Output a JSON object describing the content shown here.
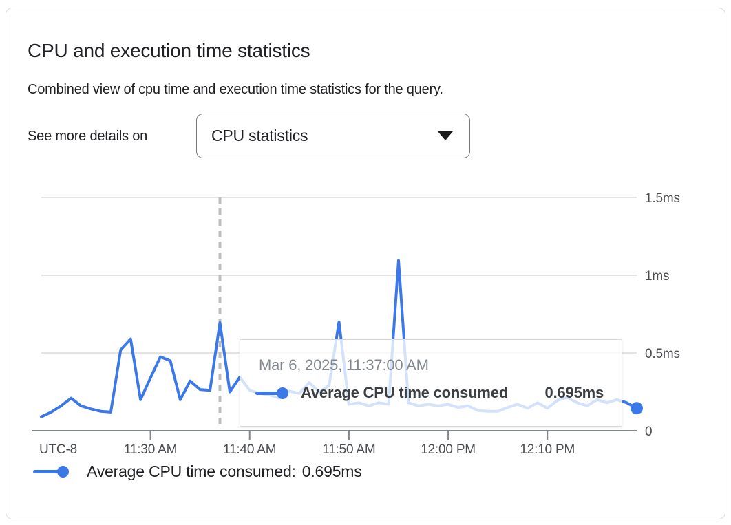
{
  "header": {
    "title": "CPU and execution time statistics",
    "subtitle": "Combined view of cpu time and execution time statistics for the query.",
    "selector_label": "See more details on",
    "selector_value": "CPU statistics"
  },
  "colors": {
    "series_blue": "#3b78e8",
    "axis_gray": "#80868b",
    "gridline_gray": "#e3e3e3",
    "dashed_marker_gray": "#bdbdbd"
  },
  "chart_data": {
    "type": "line",
    "title": "",
    "xlabel": "",
    "ylabel": "",
    "y_unit": "ms",
    "ylim": [
      0,
      1.5
    ],
    "grid": true,
    "legend_position": "bottom",
    "timezone_label": "UTC-8",
    "x_start_time": "11:19 AM",
    "x_end_time": "12:19 PM",
    "x_interval_minutes": 1,
    "x_range_minutes": 60,
    "x_ticks": [
      {
        "minute": 11,
        "label": "11:30 AM"
      },
      {
        "minute": 21,
        "label": "11:40 AM"
      },
      {
        "minute": 31,
        "label": "11:50 AM"
      },
      {
        "minute": 41,
        "label": "12:00 PM"
      },
      {
        "minute": 51,
        "label": "12:10 PM"
      }
    ],
    "y_ticks": [
      {
        "value": 0,
        "label": "0"
      },
      {
        "value": 0.5,
        "label": "0.5ms"
      },
      {
        "value": 1,
        "label": "1ms"
      },
      {
        "value": 1.5,
        "label": "1.5ms"
      }
    ],
    "selected_point": {
      "index": 18,
      "time": "Mar 6, 2025, 11:37:00 AM",
      "value_ms": 0.695,
      "display": "0.695ms"
    },
    "series": [
      {
        "name": "Average CPU time consumed",
        "color": "#3b78e8",
        "values": [
          0.09,
          0.12,
          0.16,
          0.21,
          0.16,
          0.14,
          0.125,
          0.12,
          0.52,
          0.59,
          0.2,
          0.34,
          0.475,
          0.45,
          0.2,
          0.32,
          0.265,
          0.26,
          0.695,
          0.25,
          0.345,
          0.26,
          0.24,
          0.23,
          0.21,
          0.255,
          0.24,
          0.31,
          0.25,
          0.29,
          0.7,
          0.17,
          0.18,
          0.16,
          0.18,
          0.17,
          1.095,
          0.18,
          0.16,
          0.17,
          0.16,
          0.17,
          0.15,
          0.16,
          0.13,
          0.125,
          0.125,
          0.15,
          0.17,
          0.145,
          0.18,
          0.145,
          0.195,
          0.215,
          0.18,
          0.16,
          0.2,
          0.18,
          0.2,
          0.18,
          0.145
        ]
      }
    ]
  },
  "tooltip": {
    "timestamp": "Mar 6, 2025, 11:37:00 AM",
    "series_label": "Average CPU time consumed",
    "value": "0.695ms"
  },
  "legend": {
    "label": "Average CPU time consumed:",
    "value": "0.695ms"
  }
}
